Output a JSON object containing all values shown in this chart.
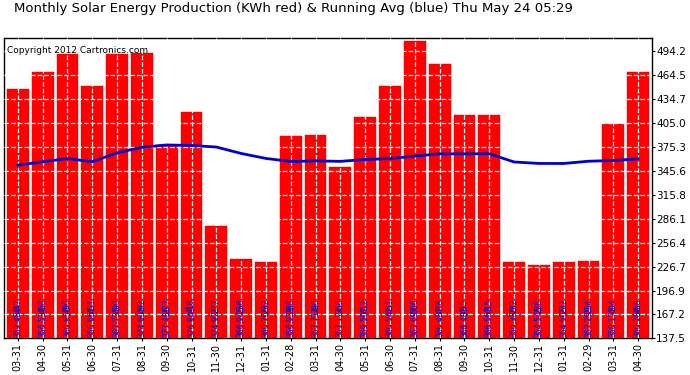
{
  "title": "Monthly Solar Energy Production (KWh red) & Running Avg (blue) Thu May 24 05:29",
  "copyright": "Copyright 2012 Cartronics.com",
  "categories": [
    "03-31",
    "04-30",
    "05-31",
    "06-30",
    "07-31",
    "08-31",
    "09-30",
    "10-31",
    "11-30",
    "12-31",
    "01-31",
    "02-28",
    "03-31",
    "04-30",
    "05-31",
    "06-30",
    "07-31",
    "08-31",
    "09-30",
    "10-31",
    "11-30",
    "12-31",
    "01-31",
    "02-29",
    "03-31",
    "04-30"
  ],
  "bar_values": [
    447,
    468,
    490,
    451,
    490,
    492,
    377,
    418,
    277,
    236,
    232,
    388,
    390,
    350,
    412,
    451,
    506,
    478,
    415,
    415,
    232,
    228,
    232,
    234,
    404,
    468
  ],
  "running_avg": [
    352.48,
    356.534,
    360.65,
    356.661,
    367.735,
    374.605,
    377.486,
    376.843,
    374.921,
    366.946,
    360.766,
    356.936,
    357.714,
    357.124,
    359.501,
    360.542,
    363.694,
    366.487,
    366.483,
    366.563,
    356.38,
    354.546,
    354.505,
    357.299,
    358.173,
    360.288
  ],
  "bar_color": "#FF0000",
  "line_color": "#0000CD",
  "bg_color": "#FFFFFF",
  "grid_color": "#AAAAAA",
  "title_color": "#000000",
  "bar_label_color": "#0000CD",
  "ylim_min": 137.5,
  "ylim_max": 509.9,
  "yticks": [
    137.5,
    167.2,
    196.9,
    226.7,
    256.4,
    286.1,
    315.8,
    345.6,
    375.3,
    405.0,
    434.7,
    464.5,
    494.2
  ],
  "title_fontsize": 9.5,
  "copyright_fontsize": 6.5,
  "bar_label_fontsize": 5.5,
  "tick_fontsize": 7.5,
  "xtick_fontsize": 7.0,
  "line_width": 2.0
}
